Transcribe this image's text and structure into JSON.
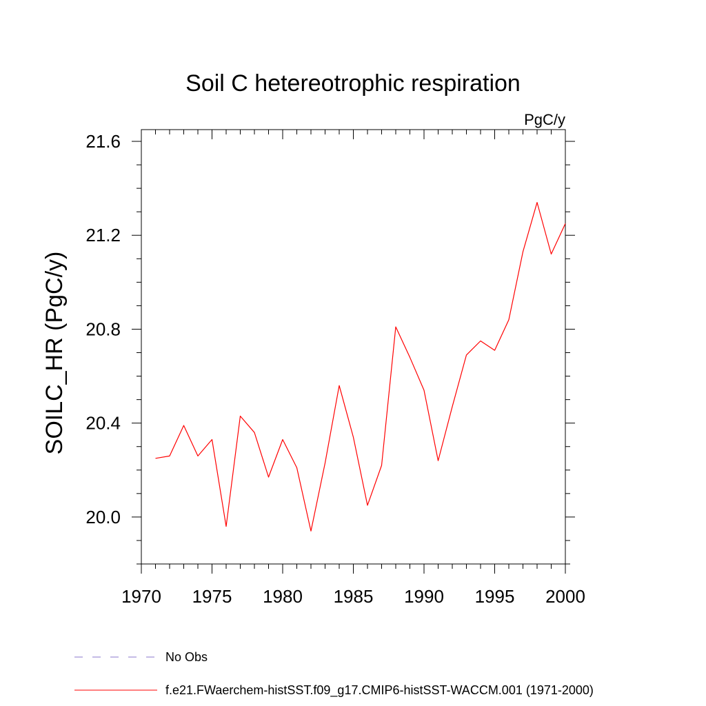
{
  "chart_data": {
    "type": "line",
    "title": "Soil C hetereotrophic respiration",
    "units_label": "PgC/y",
    "xlabel": "",
    "ylabel": "SOILC_HR  (PgC/y)",
    "xlim": [
      1970,
      2000
    ],
    "ylim": [
      19.8,
      21.65
    ],
    "x_ticks": [
      1970,
      1975,
      1980,
      1985,
      1990,
      1995,
      2000
    ],
    "x_tick_labels": [
      "1970",
      "1975",
      "1980",
      "1985",
      "1990",
      "1995",
      "2000"
    ],
    "y_ticks": [
      20.0,
      20.4,
      20.8,
      21.2,
      21.6
    ],
    "y_tick_labels": [
      "20.0",
      "20.4",
      "20.8",
      "21.2",
      "21.6"
    ],
    "grid": false,
    "legend_position": "bottom",
    "series": [
      {
        "name": "f.e21.FWaerchem-histSST.f09_g17.CMIP6-histSST-WACCM.001 (1971-2000)",
        "color": "#ff0000",
        "style": "solid",
        "x": [
          1971,
          1972,
          1973,
          1974,
          1975,
          1976,
          1977,
          1978,
          1979,
          1980,
          1981,
          1982,
          1983,
          1984,
          1985,
          1986,
          1987,
          1988,
          1989,
          1990,
          1991,
          1992,
          1993,
          1994,
          1995,
          1996,
          1997,
          1998,
          1999,
          2000
        ],
        "y": [
          20.25,
          20.26,
          20.39,
          20.26,
          20.33,
          19.96,
          20.43,
          20.36,
          20.17,
          20.33,
          20.21,
          19.94,
          20.23,
          20.56,
          20.34,
          20.05,
          20.22,
          20.81,
          20.68,
          20.54,
          20.24,
          20.47,
          20.69,
          20.75,
          20.71,
          20.84,
          21.13,
          21.34,
          21.12,
          21.25
        ]
      }
    ],
    "legend": [
      {
        "label": "No Obs",
        "color": "#8877cc",
        "style": "dashed"
      },
      {
        "label": "f.e21.FWaerchem-histSST.f09_g17.CMIP6-histSST-WACCM.001 (1971-2000)",
        "color": "#ff0000",
        "style": "solid"
      }
    ]
  }
}
